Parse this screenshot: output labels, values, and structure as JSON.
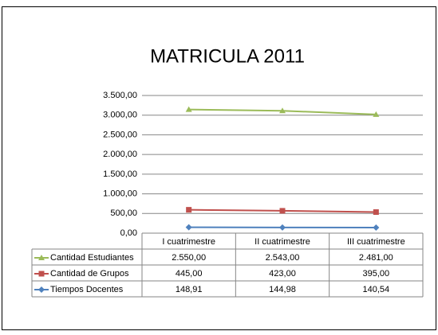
{
  "chart_data": {
    "type": "stacked_line",
    "title": "MATRICULA 2011",
    "categories": [
      "I cuatrimestre",
      "II cuatrimestre",
      "III cuatrimestre"
    ],
    "series": [
      {
        "name": "Cantidad Estudiantes",
        "color": "#9bbb59",
        "marker": "triangle",
        "values": [
          2550,
          2543,
          2481
        ],
        "value_labels": [
          "2.550,00",
          "2.543,00",
          "2.481,00"
        ]
      },
      {
        "name": "Cantidad de Grupos",
        "color": "#c0504d",
        "marker": "square",
        "values": [
          445,
          423,
          395
        ],
        "value_labels": [
          "445,00",
          "423,00",
          "395,00"
        ]
      },
      {
        "name": "Tiempos Docentes",
        "color": "#4f81bd",
        "marker": "diamond",
        "values": [
          148.91,
          144.98,
          140.54
        ],
        "value_labels": [
          "148,91",
          "144,98",
          "140,54"
        ]
      }
    ],
    "ylim": [
      0,
      3500
    ],
    "yticks": [
      {
        "value": 0,
        "label": "0,00"
      },
      {
        "value": 500,
        "label": "500,00"
      },
      {
        "value": 1000,
        "label": "1.000,00"
      },
      {
        "value": 1500,
        "label": "1.500,00"
      },
      {
        "value": 2000,
        "label": "2.000,00"
      },
      {
        "value": 2500,
        "label": "2.500,00"
      },
      {
        "value": 3000,
        "label": "3.000,00"
      },
      {
        "value": 3500,
        "label": "3.500,00"
      }
    ],
    "grid": true,
    "data_table": true
  }
}
